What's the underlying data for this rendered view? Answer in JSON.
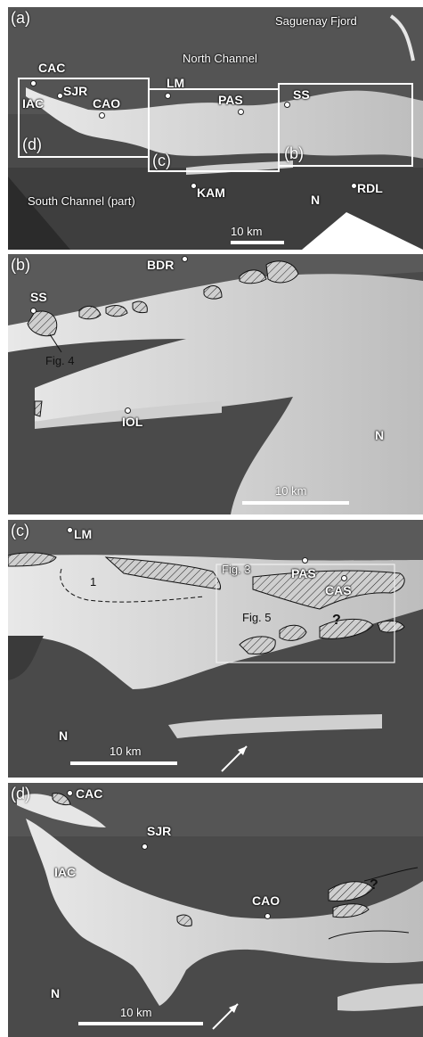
{
  "panels": {
    "a": {
      "label": "(a)",
      "places": {
        "cac": "CAC",
        "iac": "IAC",
        "sjr": "SJR",
        "cao": "CAO",
        "lm": "LM",
        "pas": "PAS",
        "ss": "SS",
        "kam": "KAM",
        "rdl": "RDL"
      },
      "annotations": {
        "saguenay": "Saguenay Fjord",
        "north_channel": "North Channel",
        "south_channel": "South Channel (part)"
      },
      "boxes": {
        "d": "(d)",
        "c": "(c)",
        "b": "(b)"
      },
      "scale": "10 km",
      "north": "N"
    },
    "b": {
      "label": "(b)",
      "places": {
        "bdr": "BDR",
        "ss": "SS",
        "iol": "IOL"
      },
      "fig_ref": "Fig. 4",
      "scale": "10 km",
      "north": "N"
    },
    "c": {
      "label": "(c)",
      "places": {
        "lm": "LM",
        "pas": "PAS",
        "cas": "CAS"
      },
      "fig3": "Fig. 3",
      "fig5": "Fig. 5",
      "zone_one": "1",
      "question": "?",
      "scale": "10 km",
      "north": "N"
    },
    "d": {
      "label": "(d)",
      "places": {
        "cac": "CAC",
        "sjr": "SJR",
        "iac": "IAC",
        "cao": "CAO"
      },
      "question": "?",
      "scale": "10 km",
      "north": "N"
    }
  },
  "colors": {
    "water": "#3b3b3b",
    "land": "#555555",
    "sediment": "#d9d9d9",
    "frame": "#ffffff"
  }
}
